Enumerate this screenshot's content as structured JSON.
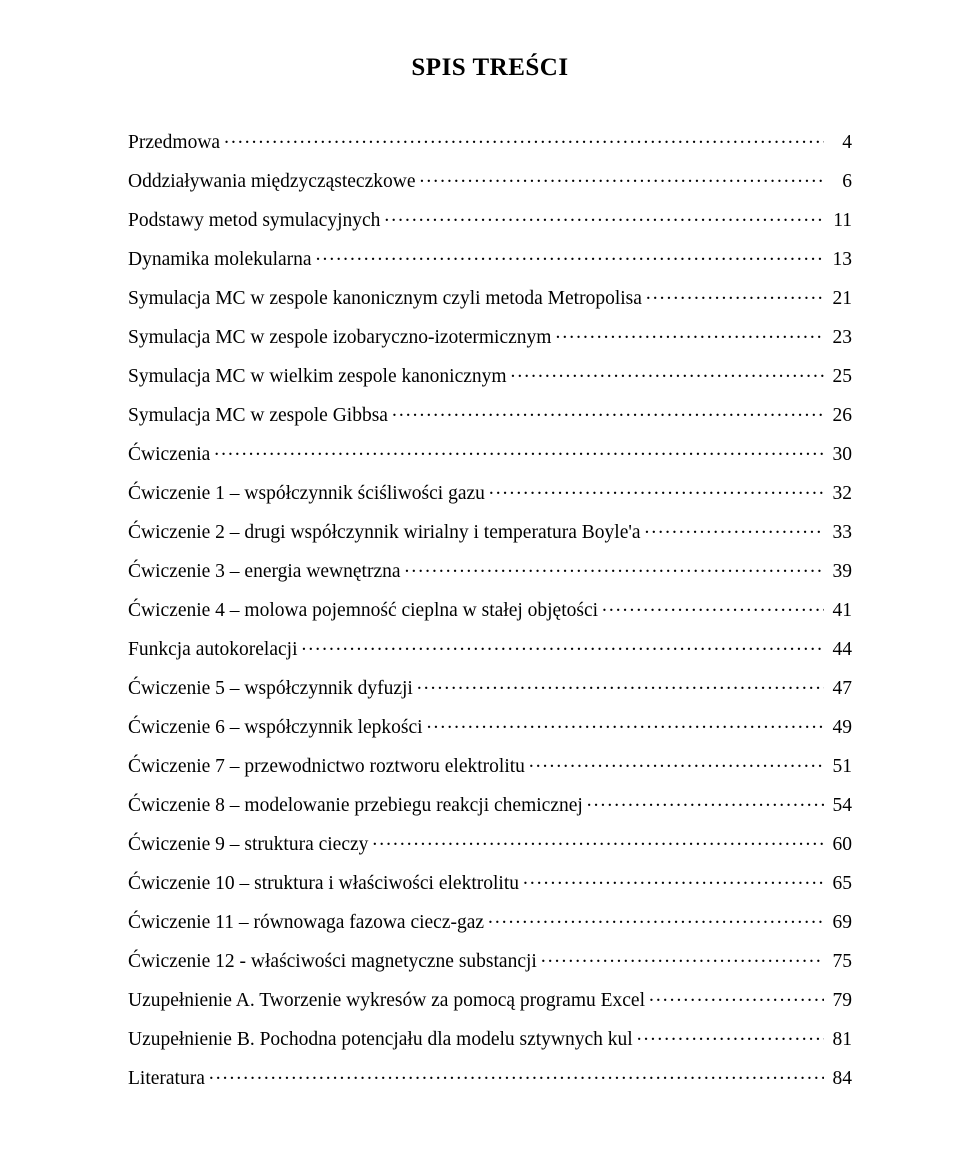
{
  "title": "SPIS TREŚCI",
  "entries": [
    {
      "label": "Przedmowa",
      "page": "4",
      "indent": false
    },
    {
      "label": "Oddziaływania międzycząsteczkowe",
      "page": "6",
      "indent": false
    },
    {
      "label": "Podstawy metod symulacyjnych",
      "page": "11",
      "indent": false
    },
    {
      "label": "Dynamika molekularna",
      "page": "13",
      "indent": true
    },
    {
      "label": "Symulacja MC w zespole kanonicznym czyli metoda Metropolisa",
      "page": "21",
      "indent": true
    },
    {
      "label": "Symulacja MC w zespole izobaryczno-izotermicznym",
      "page": "23",
      "indent": true
    },
    {
      "label": "Symulacja MC w wielkim zespole kanonicznym",
      "page": "25",
      "indent": true
    },
    {
      "label": "Symulacja MC w zespole Gibbsa",
      "page": "26",
      "indent": true
    },
    {
      "label": "Ćwiczenia",
      "page": "30",
      "indent": false
    },
    {
      "label": "Ćwiczenie 1 – współczynnik ściśliwości gazu",
      "page": "32",
      "indent": true
    },
    {
      "label": "Ćwiczenie 2 – drugi współczynnik wirialny i temperatura Boyle'a",
      "page": "33",
      "indent": true
    },
    {
      "label": "Ćwiczenie 3 – energia wewnętrzna",
      "page": "39",
      "indent": true
    },
    {
      "label": "Ćwiczenie 4 – molowa pojemność cieplna w stałej objętości",
      "page": "41",
      "indent": true
    },
    {
      "label": "Funkcja autokorelacji",
      "page": "44",
      "indent": true
    },
    {
      "label": "Ćwiczenie 5 – współczynnik dyfuzji",
      "page": "47",
      "indent": true
    },
    {
      "label": "Ćwiczenie 6 – współczynnik lepkości",
      "page": "49",
      "indent": true
    },
    {
      "label": "Ćwiczenie 7 – przewodnictwo roztworu elektrolitu",
      "page": "51",
      "indent": true
    },
    {
      "label": "Ćwiczenie 8 – modelowanie przebiegu reakcji chemicznej",
      "page": "54",
      "indent": true
    },
    {
      "label": "Ćwiczenie 9 – struktura cieczy",
      "page": "60",
      "indent": true
    },
    {
      "label": "Ćwiczenie 10 – struktura i właściwości elektrolitu",
      "page": "65",
      "indent": true
    },
    {
      "label": "Ćwiczenie 11 – równowaga fazowa ciecz-gaz",
      "page": "69",
      "indent": true
    },
    {
      "label": "Ćwiczenie 12 - właściwości magnetyczne substancji",
      "page": "75",
      "indent": true
    },
    {
      "label": "Uzupełnienie A. Tworzenie wykresów za pomocą programu Excel",
      "page": "79",
      "indent": false
    },
    {
      "label": "Uzupełnienie B. Pochodna potencjału dla modelu sztywnych kul",
      "page": "81",
      "indent": false
    },
    {
      "label": "Literatura",
      "page": "84",
      "indent": false
    }
  ]
}
